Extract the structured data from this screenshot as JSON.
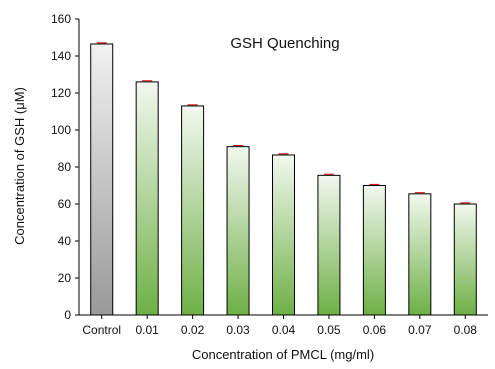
{
  "chart_data": {
    "type": "bar",
    "title": "GSH Quenching",
    "xlabel": "Concentration of PMCL (mg/ml)",
    "ylabel": "Concentration of GSH (μM)",
    "categories": [
      "Control",
      "0.01",
      "0.02",
      "0.03",
      "0.04",
      "0.05",
      "0.06",
      "0.07",
      "0.08"
    ],
    "values": [
      146.5,
      126,
      113,
      91,
      86.5,
      75.5,
      70,
      65.5,
      60
    ],
    "errors": [
      0.6,
      0.6,
      0.6,
      0.6,
      0.6,
      0.6,
      0.6,
      0.6,
      0.6
    ],
    "ylim": [
      0,
      160
    ],
    "yticks": [
      0,
      20,
      40,
      60,
      80,
      100,
      120,
      140,
      160
    ],
    "grid": false,
    "colors": {
      "control_top": "#f2f2f2",
      "control_bottom": "#999999",
      "treatment_top": "#f2f8ef",
      "treatment_bottom": "#6eb046",
      "error_bar": "#cc0000",
      "axis": "#000000"
    }
  }
}
